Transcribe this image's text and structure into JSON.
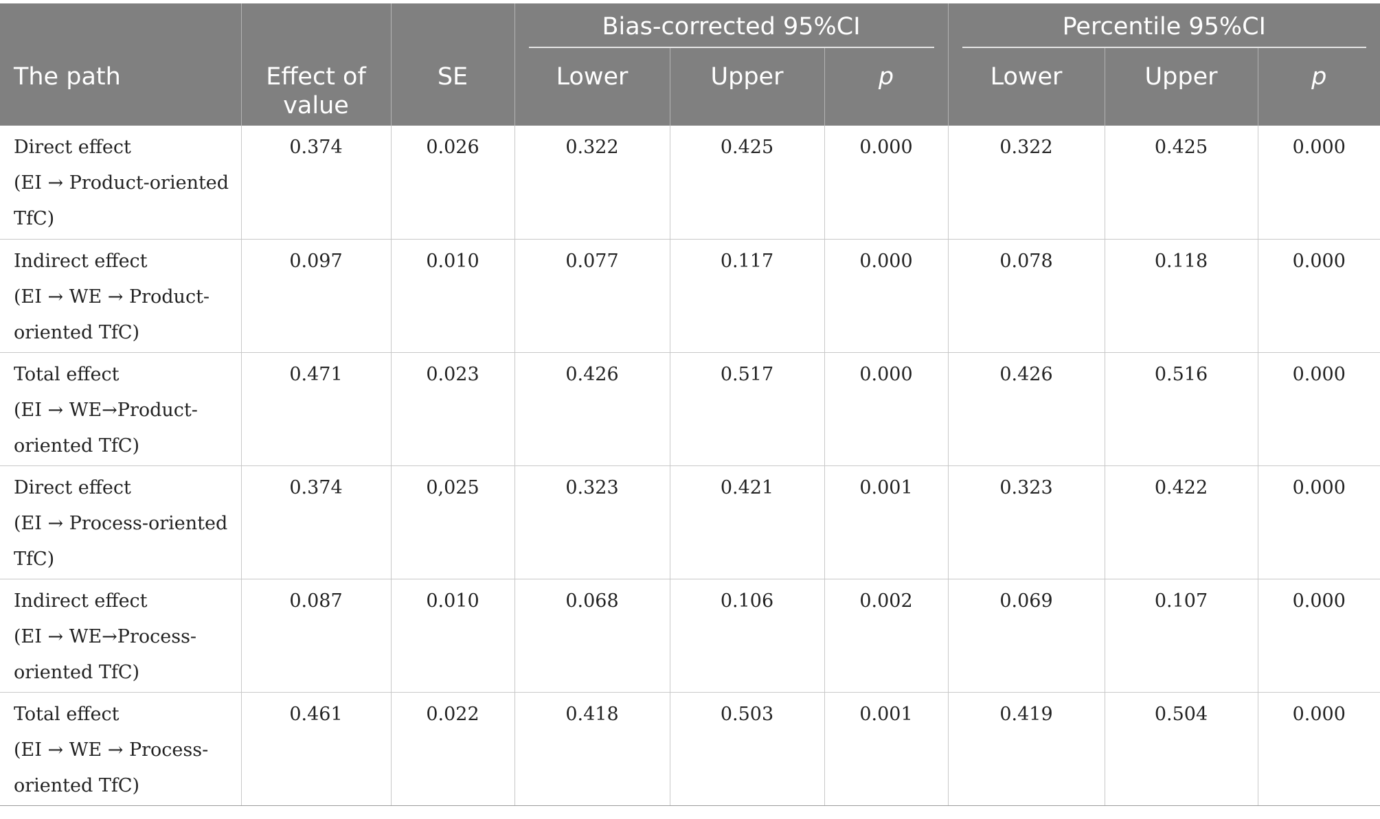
{
  "table": {
    "group_headers": {
      "bias_corrected": "Bias-corrected 95%CI",
      "percentile": "Percentile 95%CI"
    },
    "columns": [
      "The path",
      "Effect of value",
      "SE",
      "Lower",
      "Upper",
      "p",
      "Lower",
      "Upper",
      "p"
    ],
    "rows": [
      {
        "path": [
          "Direct effect",
          "(EI → Product-oriented",
          "TfC)"
        ],
        "values": [
          "0.374",
          "0.026",
          "0.322",
          "0.425",
          "0.000",
          "0.322",
          "0.425",
          "0.000"
        ]
      },
      {
        "path": [
          "Indirect effect",
          "(EI → WE → Product-",
          "oriented TfC)"
        ],
        "values": [
          "0.097",
          "0.010",
          "0.077",
          "0.117",
          "0.000",
          "0.078",
          "0.118",
          "0.000"
        ]
      },
      {
        "path": [
          "Total effect",
          "(EI → WE→Product-",
          "oriented TfC)"
        ],
        "values": [
          "0.471",
          "0.023",
          "0.426",
          "0.517",
          "0.000",
          "0.426",
          "0.516",
          "0.000"
        ]
      },
      {
        "path": [
          "Direct effect",
          "(EI → Process-oriented",
          "TfC)"
        ],
        "values": [
          "0.374",
          "0,025",
          "0.323",
          "0.421",
          "0.001",
          "0.323",
          "0.422",
          "0.000"
        ]
      },
      {
        "path": [
          "Indirect effect",
          "(EI → WE→Process-",
          "oriented TfC)"
        ],
        "values": [
          "0.087",
          "0.010",
          "0.068",
          "0.106",
          "0.002",
          "0.069",
          "0.107",
          "0.000"
        ]
      },
      {
        "path": [
          "Total effect",
          "(EI → WE → Process-",
          "oriented TfC)"
        ],
        "values": [
          "0.461",
          "0.022",
          "0.418",
          "0.503",
          "0.001",
          "0.419",
          "0.504",
          "0.000"
        ]
      }
    ]
  }
}
